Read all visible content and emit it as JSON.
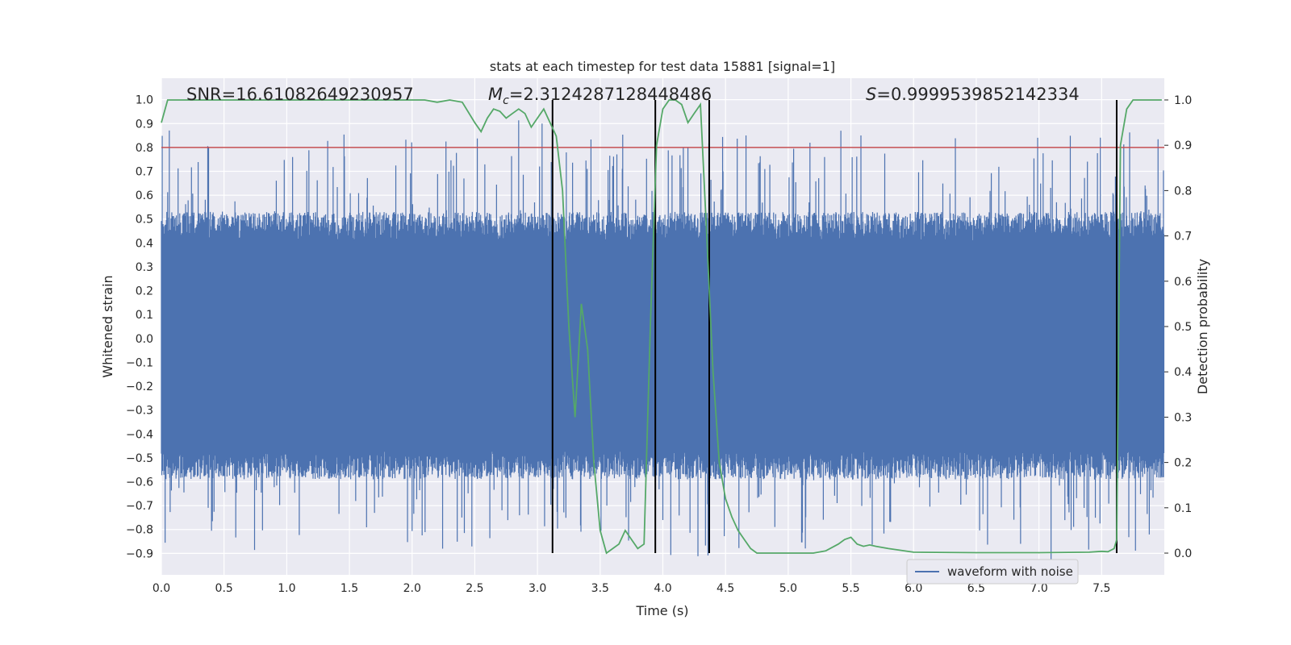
{
  "chart_data": {
    "type": "line",
    "title": "stats at each timestep for test data 15881 [signal=1]",
    "xlabel": "Time (s)",
    "ylabel": "Whitened strain",
    "y2label": "Detection probability",
    "xlim": [
      0.0,
      8.0
    ],
    "ylim": [
      -0.99,
      1.09
    ],
    "y2lim": [
      -0.048,
      1.048
    ],
    "x_ticks": [
      "0.0",
      "0.5",
      "1.0",
      "1.5",
      "2.0",
      "2.5",
      "3.0",
      "3.5",
      "4.0",
      "4.5",
      "5.0",
      "5.5",
      "6.0",
      "6.5",
      "7.0",
      "7.5"
    ],
    "y_ticks": [
      "1.0",
      "0.9",
      "0.8",
      "0.7",
      "0.6",
      "0.5",
      "0.4",
      "0.3",
      "0.2",
      "0.1",
      "0.0",
      "−0.1",
      "−0.2",
      "−0.3",
      "−0.4",
      "−0.5",
      "−0.6",
      "−0.7",
      "−0.8",
      "−0.9"
    ],
    "y2_ticks": [
      "1.0",
      "0.9",
      "0.8",
      "0.7",
      "0.6",
      "0.5",
      "0.4",
      "0.3",
      "0.2",
      "0.1",
      "0.0"
    ],
    "grid": true,
    "background_color": "#eaeaf2",
    "legend": {
      "position": "lower-right",
      "entries": [
        "waveform with noise"
      ]
    },
    "annotations": {
      "snr": "SNR=16.61082649230957",
      "mc": "=2.3124287128448486",
      "mc_symbol": "M",
      "mc_sub": "c",
      "s": "=0.9999539852142334",
      "s_symbol": "S"
    },
    "threshold_line": {
      "value": 0.8,
      "color": "#c44e52"
    },
    "vertical_lines_x": [
      3.12,
      3.94,
      4.37,
      7.62
    ],
    "waveform": {
      "name": "waveform with noise",
      "color": "#4c72b0",
      "approx_envelope": [
        -0.52,
        0.46
      ]
    },
    "probability_series": {
      "color": "#55a868",
      "x": [
        0.0,
        0.05,
        0.1,
        0.2,
        0.4,
        0.6,
        0.8,
        1.0,
        1.2,
        1.4,
        1.6,
        1.8,
        2.0,
        2.1,
        2.2,
        2.3,
        2.4,
        2.5,
        2.55,
        2.6,
        2.65,
        2.7,
        2.75,
        2.8,
        2.85,
        2.9,
        2.95,
        3.0,
        3.05,
        3.1,
        3.15,
        3.2,
        3.25,
        3.3,
        3.35,
        3.4,
        3.45,
        3.5,
        3.55,
        3.6,
        3.65,
        3.7,
        3.75,
        3.8,
        3.85,
        3.9,
        3.95,
        4.0,
        4.05,
        4.1,
        4.15,
        4.2,
        4.25,
        4.3,
        4.35,
        4.4,
        4.45,
        4.5,
        4.55,
        4.6,
        4.65,
        4.7,
        4.75,
        4.8,
        4.9,
        5.0,
        5.1,
        5.2,
        5.3,
        5.4,
        5.45,
        5.5,
        5.55,
        5.6,
        5.65,
        5.7,
        5.8,
        6.0,
        6.5,
        7.0,
        7.4,
        7.5,
        7.55,
        7.6,
        7.62,
        7.65,
        7.7,
        7.75,
        7.8,
        7.9,
        7.98
      ],
      "y": [
        0.95,
        1.0,
        1.0,
        1.0,
        1.0,
        1.0,
        1.0,
        1.0,
        1.0,
        1.0,
        1.0,
        1.0,
        1.0,
        1.0,
        0.995,
        1.0,
        0.995,
        0.95,
        0.93,
        0.96,
        0.98,
        0.975,
        0.96,
        0.97,
        0.98,
        0.97,
        0.94,
        0.96,
        0.98,
        0.95,
        0.92,
        0.8,
        0.5,
        0.3,
        0.55,
        0.45,
        0.2,
        0.05,
        0.0,
        0.01,
        0.02,
        0.05,
        0.03,
        0.01,
        0.02,
        0.5,
        0.9,
        0.98,
        1.0,
        1.0,
        0.99,
        0.95,
        0.97,
        0.99,
        0.7,
        0.4,
        0.2,
        0.12,
        0.08,
        0.05,
        0.03,
        0.01,
        0.0,
        0.0,
        0.0,
        0.0,
        0.0,
        0.0,
        0.005,
        0.02,
        0.03,
        0.035,
        0.02,
        0.015,
        0.018,
        0.015,
        0.01,
        0.002,
        0.001,
        0.001,
        0.002,
        0.004,
        0.003,
        0.01,
        0.03,
        0.9,
        0.98,
        1.0,
        1.0,
        1.0,
        1.0
      ]
    }
  }
}
